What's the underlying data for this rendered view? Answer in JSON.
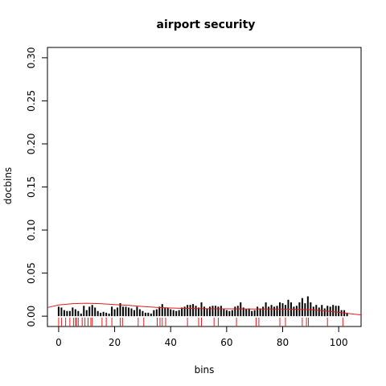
{
  "chart_data": {
    "type": "bar",
    "title": "airport security",
    "xlabel": "bins",
    "ylabel": "docbins",
    "xlim": [
      -4,
      108
    ],
    "ylim": [
      -0.012,
      0.312
    ],
    "x_ticks": [
      0,
      20,
      40,
      60,
      80,
      100
    ],
    "x_tick_labels": [
      "0",
      "20",
      "40",
      "60",
      "80",
      "100"
    ],
    "y_ticks": [
      0.0,
      0.05,
      0.1,
      0.15,
      0.2,
      0.25,
      0.3
    ],
    "y_tick_labels": [
      "0.00",
      "0.05",
      "0.10",
      "0.15",
      "0.20",
      "0.25",
      "0.30"
    ],
    "grid": false,
    "legend": "none",
    "bar_color": "#000000",
    "curve_color": "#e41a1c",
    "rug_color": "#e41a1c",
    "series": [
      {
        "kind": "bars",
        "x": [
          0,
          1,
          2,
          3,
          4,
          5,
          6,
          7,
          8,
          9,
          10,
          11,
          12,
          13,
          14,
          15,
          16,
          17,
          18,
          19,
          20,
          21,
          22,
          23,
          24,
          25,
          26,
          27,
          28,
          29,
          30,
          31,
          32,
          33,
          34,
          35,
          36,
          37,
          38,
          39,
          40,
          41,
          42,
          43,
          44,
          45,
          46,
          47,
          48,
          49,
          50,
          51,
          52,
          53,
          54,
          55,
          56,
          57,
          58,
          59,
          60,
          61,
          62,
          63,
          64,
          65,
          66,
          67,
          68,
          69,
          70,
          71,
          72,
          73,
          74,
          75,
          76,
          77,
          78,
          79,
          80,
          81,
          82,
          83,
          84,
          85,
          86,
          87,
          88,
          89,
          90,
          91,
          92,
          93,
          94,
          95,
          96,
          97,
          98,
          99,
          100,
          101,
          102,
          103
        ],
        "values": [
          0.011,
          0.01,
          0.007,
          0.006,
          0.006,
          0.01,
          0.008,
          0.006,
          0.003,
          0.012,
          0.007,
          0.011,
          0.013,
          0.01,
          0.006,
          0.004,
          0.005,
          0.004,
          0.003,
          0.011,
          0.008,
          0.01,
          0.015,
          0.011,
          0.011,
          0.01,
          0.009,
          0.007,
          0.011,
          0.008,
          0.006,
          0.004,
          0.004,
          0.003,
          0.007,
          0.008,
          0.011,
          0.014,
          0.01,
          0.01,
          0.008,
          0.007,
          0.006,
          0.007,
          0.01,
          0.011,
          0.013,
          0.013,
          0.014,
          0.012,
          0.01,
          0.016,
          0.011,
          0.009,
          0.011,
          0.012,
          0.012,
          0.011,
          0.012,
          0.008,
          0.007,
          0.006,
          0.007,
          0.011,
          0.012,
          0.016,
          0.01,
          0.008,
          0.009,
          0.006,
          0.007,
          0.011,
          0.009,
          0.011,
          0.016,
          0.011,
          0.013,
          0.011,
          0.012,
          0.016,
          0.015,
          0.013,
          0.019,
          0.016,
          0.011,
          0.012,
          0.016,
          0.021,
          0.015,
          0.023,
          0.016,
          0.011,
          0.013,
          0.01,
          0.013,
          0.009,
          0.012,
          0.011,
          0.013,
          0.012,
          0.012,
          0.007,
          0.007,
          0.004
        ]
      },
      {
        "kind": "curve",
        "x": [
          -4,
          0,
          5,
          10,
          15,
          20,
          25,
          30,
          35,
          40,
          45,
          50,
          55,
          60,
          65,
          70,
          75,
          80,
          85,
          90,
          95,
          100,
          105,
          108
        ],
        "values": [
          0.01,
          0.013,
          0.0145,
          0.015,
          0.0145,
          0.0135,
          0.0125,
          0.0112,
          0.0102,
          0.0095,
          0.009,
          0.0088,
          0.0086,
          0.0085,
          0.0084,
          0.0083,
          0.0083,
          0.0082,
          0.008,
          0.0075,
          0.0062,
          0.0045,
          0.0025,
          0.0015
        ]
      },
      {
        "kind": "rug",
        "x": [
          0,
          1,
          2.5,
          4,
          5.3,
          6,
          6.4,
          7,
          8.4,
          9.4,
          10.5,
          11.5,
          12,
          15.5,
          17,
          19,
          22,
          22.8,
          28.4,
          30.4,
          35.2,
          36.2,
          37,
          38.2,
          46,
          50,
          51,
          55.5,
          57,
          63.5,
          70.5,
          71.5,
          79,
          81,
          87,
          88.5,
          89.2,
          96,
          101.5
        ]
      }
    ]
  }
}
